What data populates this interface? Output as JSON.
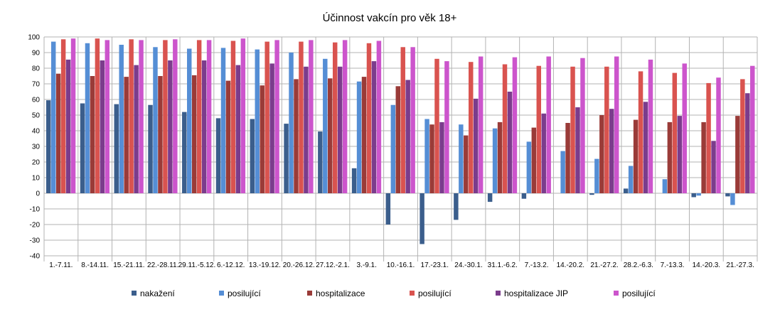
{
  "chart_data": {
    "type": "bar",
    "title": "Účinnost vakcín pro věk 18+",
    "xlabel": "",
    "ylabel": "",
    "ylim": [
      -40,
      100
    ],
    "ytick_step": 10,
    "grid": true,
    "legend_position": "bottom",
    "categories": [
      "1.-7.11.",
      "8.-14.11.",
      "15.-21.11.",
      "22.-28.11.",
      "29.11.-5.12.",
      "6.-12.12.",
      "13.-19.12.",
      "20.-26.12.",
      "27.12.-2.1.",
      "3.-9.1.",
      "10.-16.1.",
      "17.-23.1.",
      "24.-30.1.",
      "31.1.-6.2.",
      "7.-13.2.",
      "14.-20.2.",
      "21.-27.2.",
      "28.2.-6.3.",
      "7.-13.3.",
      "14.-20.3.",
      "21.-27.3."
    ],
    "series": [
      {
        "name": "nakažení",
        "color": "#3b5e8c",
        "values": [
          59.5,
          57.5,
          57,
          56.5,
          52,
          48,
          47.5,
          44.5,
          39.5,
          16,
          -20,
          -32.5,
          -17,
          -5.5,
          -3.5,
          0,
          -1,
          3,
          0,
          -2.5,
          -2
        ]
      },
      {
        "name": "posilující",
        "color": "#558ed5",
        "values": [
          97,
          96,
          95,
          93.5,
          92.5,
          93,
          92,
          90,
          86,
          71.5,
          56.5,
          47.5,
          44,
          41.5,
          33,
          27,
          22,
          17.5,
          9,
          -1.5,
          -7.5
        ]
      },
      {
        "name": "hospitalizace",
        "color": "#9a3b38",
        "values": [
          76.5,
          75,
          74.5,
          75,
          75.5,
          72,
          69,
          73,
          73.5,
          74.5,
          68.5,
          44,
          37,
          45.5,
          42,
          45,
          50,
          47,
          45.5,
          45.5,
          49.5
        ]
      },
      {
        "name": "posilující",
        "color": "#d9534f",
        "values": [
          98.5,
          99,
          98.5,
          98,
          98,
          97.5,
          97,
          97,
          96.5,
          96,
          93.5,
          86,
          84,
          82.5,
          81.5,
          81,
          81,
          78,
          77,
          70.5,
          73
        ]
      },
      {
        "name": "hospitalizace JIP",
        "color": "#7b3c8c",
        "values": [
          85.5,
          85,
          82,
          85,
          85,
          82,
          83,
          81,
          81,
          84.5,
          72.5,
          45.5,
          60.5,
          65,
          51,
          55,
          54,
          58.5,
          49.5,
          33.5,
          64
        ]
      },
      {
        "name": "posilující",
        "color": "#cc55cc",
        "values": [
          99,
          98,
          98,
          98.5,
          98,
          99,
          98,
          98,
          98,
          97.5,
          93.5,
          84.5,
          87.5,
          87,
          87.5,
          86.5,
          87.5,
          85.5,
          83,
          74,
          81.5
        ]
      }
    ]
  }
}
